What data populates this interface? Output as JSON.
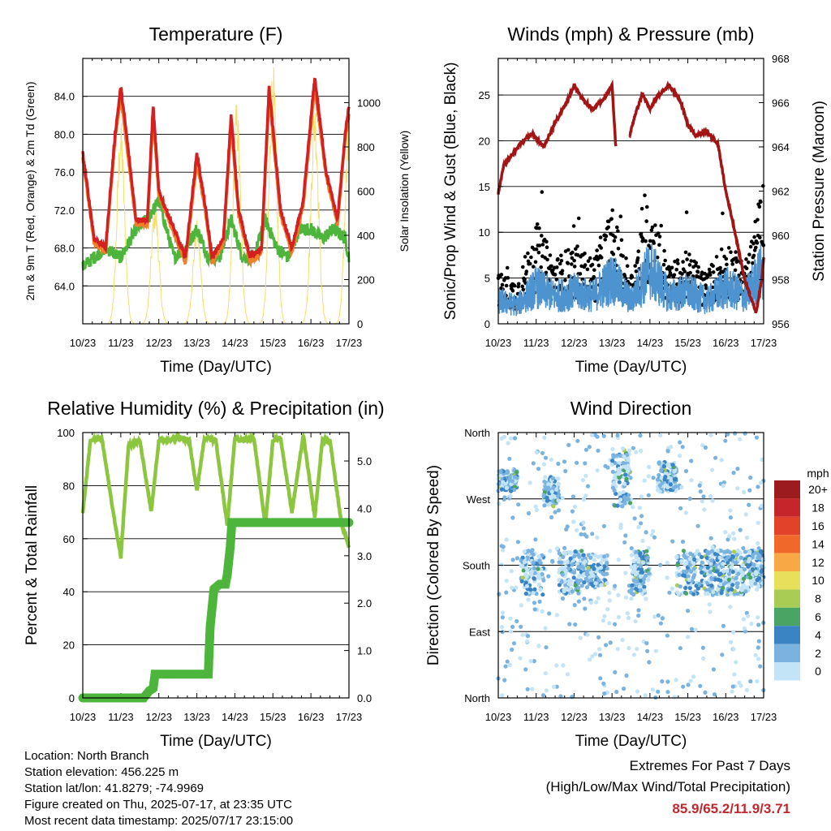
{
  "x_ticks": [
    "10/23",
    "11/23",
    "12/23",
    "13/23",
    "14/23",
    "15/23",
    "16/23",
    "17/23"
  ],
  "xlabel": "Time (Day/UTC)",
  "chart_data": [
    {
      "type": "line",
      "title": "Temperature (F)",
      "ylabel_left": "2m & 9m T (Red, Orange) & 2m Td (Green)",
      "ylabel_right": "Solar Insolation (Yellow)",
      "ylim_left": [
        60,
        88
      ],
      "ylim_right": [
        0,
        1200
      ],
      "yticks_left": [
        "64.0",
        "68.0",
        "72.0",
        "76.0",
        "80.0",
        "84.0"
      ],
      "yticks_right": [
        "0",
        "200",
        "400",
        "600",
        "800",
        "1000"
      ],
      "colors": {
        "t2m": "#d42020",
        "t9m": "#f07f2a",
        "td": "#4db53c",
        "solar": "#f5de6b"
      },
      "series": [
        {
          "name": "2m T",
          "x": [
            0,
            0.3,
            0.6,
            0.85,
            1.0,
            1.15,
            1.4,
            1.7,
            1.85,
            2.0,
            2.4,
            2.7,
            3.0,
            3.2,
            3.4,
            3.7,
            3.9,
            4.1,
            4.4,
            4.7,
            4.9,
            5.2,
            5.5,
            5.8,
            6.1,
            6.4,
            6.7,
            6.9,
            7.0
          ],
          "values": [
            78,
            69,
            68,
            80,
            85,
            80,
            71,
            71,
            83,
            74,
            70,
            67,
            78,
            73,
            67,
            69,
            82,
            72,
            67,
            68,
            85,
            72,
            68,
            73,
            86,
            76,
            71,
            80,
            83
          ]
        },
        {
          "name": "9m T",
          "x": [
            0,
            0.3,
            0.6,
            0.85,
            1.0,
            1.15,
            1.4,
            1.7,
            1.85,
            2.0,
            2.4,
            2.7,
            3.0,
            3.2,
            3.4,
            3.7,
            3.9,
            4.1,
            4.4,
            4.7,
            4.9,
            5.2,
            5.5,
            5.8,
            6.1,
            6.4,
            6.7,
            6.9,
            7.0
          ],
          "values": [
            77.5,
            68.5,
            67.5,
            79.5,
            84,
            79,
            70.5,
            70.5,
            82,
            73.5,
            69.5,
            66.5,
            77,
            72.5,
            66.5,
            68.5,
            81,
            71.5,
            66.5,
            67.5,
            84,
            71.5,
            67.5,
            72.5,
            85,
            75.5,
            70.5,
            79.5,
            82
          ]
        },
        {
          "name": "2m Td",
          "x": [
            0,
            0.3,
            0.6,
            1.0,
            1.4,
            1.7,
            2.0,
            2.4,
            2.7,
            3.0,
            3.3,
            3.6,
            3.9,
            4.2,
            4.5,
            4.8,
            5.1,
            5.4,
            5.7,
            6.0,
            6.3,
            6.6,
            6.9,
            7.0
          ],
          "values": [
            66,
            67,
            68,
            67,
            70,
            71,
            73,
            67,
            68,
            70,
            67,
            67,
            71,
            67,
            67,
            71,
            68,
            67,
            70,
            70,
            69,
            70,
            69,
            67
          ]
        },
        {
          "name": "Solar",
          "peaks": [
            1.0,
            1.9,
            3.0,
            4.05,
            5.0,
            6.1,
            7.0
          ],
          "peak_values": [
            920,
            560,
            470,
            1020,
            1190,
            1030,
            1000
          ]
        }
      ]
    },
    {
      "type": "line",
      "title": "Winds (mph) & Pressure (mb)",
      "ylabel_left": "Sonic/Prop Wind & Gust (Blue, Black)",
      "ylabel_right": "Station Pressure (Maroon)",
      "ylim_left": [
        0,
        29
      ],
      "ylim_right": [
        956,
        968
      ],
      "yticks_left": [
        "0",
        "5",
        "10",
        "15",
        "20",
        "25"
      ],
      "yticks_right": [
        "956",
        "958",
        "960",
        "962",
        "964",
        "966",
        "968"
      ],
      "colors": {
        "wind": "#4d93cf",
        "gust": "#000000",
        "pressure": "#a31515"
      },
      "series": [
        {
          "name": "Pressure",
          "x": [
            0,
            0.15,
            0.35,
            0.6,
            0.9,
            1.2,
            1.5,
            1.8,
            2.0,
            2.2,
            2.5,
            2.8,
            3.0,
            3.1,
            null,
            3.45,
            3.6,
            3.8,
            4.0,
            4.2,
            4.5,
            4.8,
            5.0,
            5.2,
            5.5,
            5.8,
            6.0,
            6.2,
            6.5,
            6.8,
            6.95,
            7.0
          ],
          "values": [
            961.9,
            963.2,
            963.6,
            964.2,
            964.6,
            964,
            965.1,
            966,
            966.8,
            966.2,
            965.7,
            966.2,
            966.8,
            964,
            null,
            964.4,
            965.4,
            966.4,
            965.7,
            966.3,
            966.8,
            966.1,
            965,
            964.5,
            964.7,
            964.1,
            962,
            960.5,
            958,
            956.5,
            958,
            959
          ]
        },
        {
          "name": "Wind",
          "mean_x": [
            0,
            0.5,
            1.0,
            1.5,
            2.0,
            2.5,
            3.0,
            3.5,
            4.0,
            4.5,
            5.0,
            5.5,
            6.0,
            6.5,
            7.0
          ],
          "mean_values": [
            2.5,
            2,
            4,
            3,
            3.5,
            3,
            5,
            2.5,
            6,
            3,
            3.5,
            2.5,
            4,
            3,
            6
          ]
        },
        {
          "name": "Gust",
          "mean_x": [
            0,
            0.5,
            1.0,
            1.5,
            2.0,
            2.5,
            3.0,
            3.5,
            4.0,
            4.5,
            5.0,
            5.5,
            6.0,
            6.5,
            7.0
          ],
          "mean_values": [
            3.5,
            3,
            7,
            4.5,
            5.5,
            4.5,
            8,
            3.5,
            9,
            4,
            5,
            3.5,
            6,
            4,
            10
          ]
        }
      ]
    },
    {
      "type": "line",
      "title": "Relative Humidity (%) & Precipitation (in)",
      "ylabel_left": "Percent & Total Rainfall",
      "ylim_left": [
        0,
        100
      ],
      "ylim_right": [
        0,
        5.6
      ],
      "yticks_left": [
        "0",
        "20",
        "40",
        "60",
        "80",
        "100"
      ],
      "yticks_right": [
        "0.0",
        "1.0",
        "2.0",
        "3.0",
        "4.0",
        "5.0"
      ],
      "colors": {
        "rh": "#8cc63f",
        "precip": "#4db53c"
      },
      "series": [
        {
          "name": "RH",
          "x": [
            0,
            0.2,
            0.5,
            0.8,
            1.0,
            1.2,
            1.5,
            1.8,
            2.0,
            2.2,
            2.5,
            2.8,
            3.0,
            3.2,
            3.5,
            3.8,
            4.0,
            4.2,
            4.5,
            4.8,
            5.0,
            5.2,
            5.5,
            5.8,
            6.1,
            6.3,
            6.5,
            6.8,
            7.0
          ],
          "values": [
            70,
            97,
            98,
            70,
            53,
            95,
            97,
            70,
            97,
            97,
            98,
            97,
            78,
            98,
            97,
            65,
            98,
            97,
            98,
            65,
            97,
            98,
            70,
            99,
            68,
            97,
            97,
            66,
            57
          ]
        },
        {
          "name": "Precip",
          "x": [
            0,
            1.6,
            1.75,
            1.85,
            1.9,
            3.3,
            3.35,
            3.45,
            3.6,
            3.75,
            3.8,
            3.88,
            3.92,
            7.0
          ],
          "values": [
            0,
            0,
            0.15,
            0.2,
            0.5,
            0.5,
            1.5,
            2.3,
            2.4,
            2.4,
            2.6,
            3.2,
            3.7,
            3.7
          ]
        }
      ]
    },
    {
      "type": "scatter",
      "title": "Wind Direction",
      "ylabel_left": "Direction (Colored By Speed)",
      "ylim_left": [
        0,
        360
      ],
      "yticks_left": [
        "North",
        "East",
        "South",
        "West",
        "North"
      ],
      "legend_title": "mph",
      "legend_labels": [
        "20+",
        "18",
        "16",
        "14",
        "12",
        "10",
        "8",
        "6",
        "4",
        "2",
        "0"
      ],
      "legend_colors": [
        "#9b1b1e",
        "#c6252b",
        "#e2412a",
        "#f0692b",
        "#f8a845",
        "#e8e05a",
        "#a9cc55",
        "#4aa564",
        "#3b84c4",
        "#7ab3e0",
        "#c3e3f6"
      ],
      "clusters": [
        {
          "x": [
            0,
            0.5
          ],
          "dir": [
            280,
            310
          ]
        },
        {
          "x": [
            0.6,
            1.2
          ],
          "dir": [
            140,
            200
          ]
        },
        {
          "x": [
            1.2,
            1.6
          ],
          "dir": [
            260,
            300
          ]
        },
        {
          "x": [
            1.6,
            2.2
          ],
          "dir": [
            140,
            200
          ]
        },
        {
          "x": [
            2.2,
            2.9
          ],
          "dir": [
            150,
            195
          ]
        },
        {
          "x": [
            3.0,
            3.5
          ],
          "dir": [
            260,
            340
          ]
        },
        {
          "x": [
            3.5,
            4.0
          ],
          "dir": [
            140,
            200
          ]
        },
        {
          "x": [
            4.2,
            4.7
          ],
          "dir": [
            280,
            320
          ]
        },
        {
          "x": [
            4.7,
            5.5
          ],
          "dir": [
            140,
            200
          ]
        },
        {
          "x": [
            5.5,
            6.0
          ],
          "dir": [
            140,
            200
          ]
        },
        {
          "x": [
            6.0,
            6.6
          ],
          "dir": [
            140,
            200
          ]
        },
        {
          "x": [
            6.6,
            7.0
          ],
          "dir": [
            150,
            200
          ]
        }
      ]
    }
  ],
  "info": {
    "location": "Location: North Branch",
    "elevation": "Station elevation: 456.225 m",
    "latlon": "Station lat/lon: 41.8279; -74.9969",
    "created": "Figure created on Thu, 2025-07-17, at 23:35 UTC",
    "recent": "Most recent data timestamp: 2025/07/17 23:15:00"
  },
  "extremes": {
    "title": "Extremes For Past 7 Days",
    "subtitle": "(High/Low/Max Wind/Total Precipitation)",
    "values": "85.9/65.2/11.9/3.71"
  }
}
